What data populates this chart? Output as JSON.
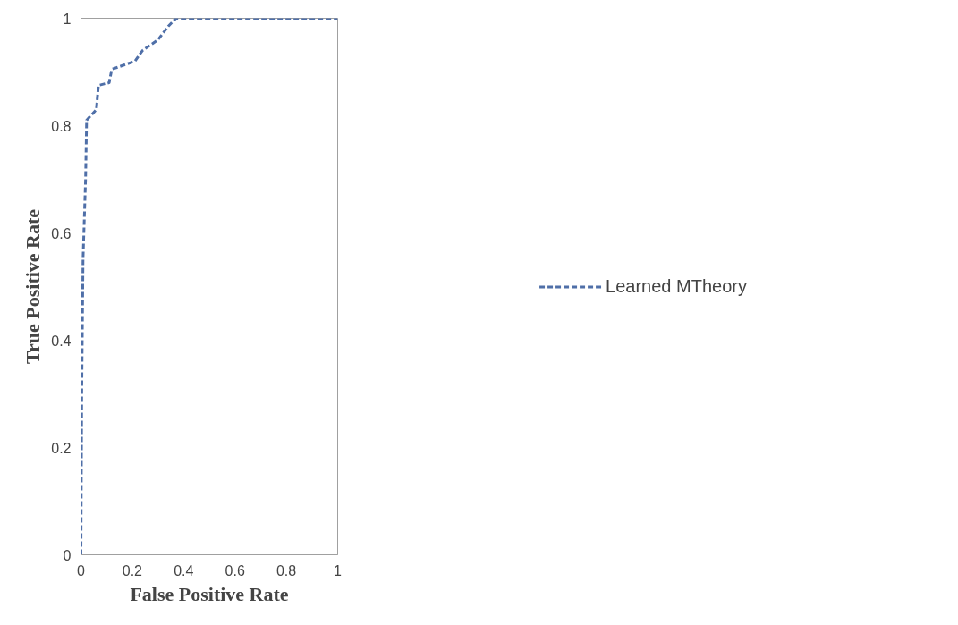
{
  "chart_data": {
    "type": "line",
    "xlabel": "False Positive Rate",
    "ylabel": "True Positive Rate",
    "x": [
      0,
      0.003,
      0.008,
      0.018,
      0.022,
      0.06,
      0.068,
      0.11,
      0.12,
      0.21,
      0.24,
      0.3,
      0.34,
      0.37,
      1
    ],
    "series": [
      {
        "name": "Learned MTheory",
        "color": "#4f6fa8",
        "values": [
          0,
          0.3,
          0.55,
          0.7,
          0.81,
          0.83,
          0.875,
          0.88,
          0.905,
          0.92,
          0.94,
          0.96,
          0.985,
          1,
          1
        ]
      }
    ],
    "xlim": [
      0,
      1
    ],
    "ylim": [
      0,
      1
    ],
    "xticks": [
      0,
      0.2,
      0.4,
      0.6,
      0.8,
      1
    ],
    "yticks": [
      0,
      0.2,
      0.4,
      0.6,
      0.8,
      1
    ],
    "grid": false,
    "legend": "right",
    "line_style": "dashed",
    "marker": "none"
  }
}
